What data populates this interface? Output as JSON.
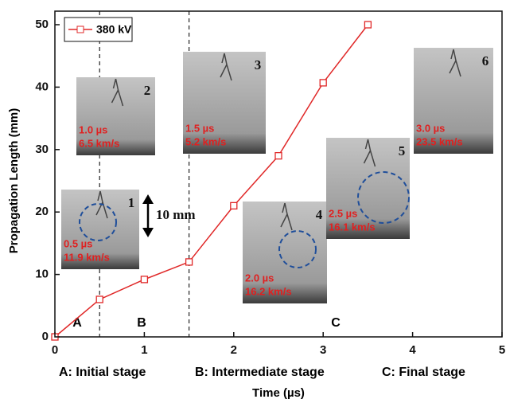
{
  "chart_data": {
    "type": "line",
    "x_label": "Time (µs)",
    "y_label": "Propagation Length (mm)",
    "x": [
      0,
      0.5,
      1.0,
      1.5,
      2.0,
      2.5,
      3.0,
      3.5
    ],
    "series": [
      {
        "name": "380 kV",
        "color": "#e02828",
        "values": [
          0,
          6.0,
          9.2,
          12.0,
          21.0,
          29.0,
          40.7,
          50.0
        ]
      }
    ],
    "xlim": [
      0,
      5
    ],
    "ylim": [
      0,
      50
    ],
    "xticks": [
      0,
      1,
      2,
      3,
      4,
      5
    ],
    "yticks": [
      0,
      10,
      20,
      30,
      40,
      50
    ],
    "legend": "upper left",
    "stage_lines": [
      0.5,
      1.5
    ],
    "stages": [
      {
        "letter": "A",
        "label": "A: Initial stage"
      },
      {
        "letter": "B",
        "label": "B: Intermediate stage"
      },
      {
        "letter": "C",
        "label": "C: Final stage"
      }
    ],
    "scale_bar": "10 mm",
    "insets": [
      {
        "number": "1",
        "time": "0.5 µs",
        "speed": "11.9 km/s"
      },
      {
        "number": "2",
        "time": "1.0 µs",
        "speed": "6.5 km/s"
      },
      {
        "number": "3",
        "time": "1.5 µs",
        "speed": "5.2 km/s"
      },
      {
        "number": "4",
        "time": "2.0 µs",
        "speed": "16.2 km/s"
      },
      {
        "number": "5",
        "time": "2.5 µs",
        "speed": "16.1 km/s"
      },
      {
        "number": "6",
        "time": "3.0 µs",
        "speed": "23.5 km/s"
      }
    ]
  }
}
